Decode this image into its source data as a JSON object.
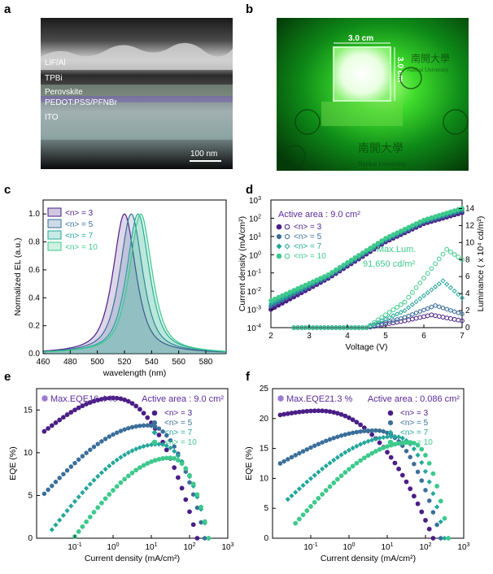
{
  "panel_labels": {
    "a": "a",
    "b": "b",
    "c": "c",
    "d": "d",
    "e": "e",
    "f": "f"
  },
  "colors": {
    "n3": "#4a1e86",
    "n5": "#3b6f9a",
    "n7": "#24a79a",
    "n10": "#3ec98c",
    "ann_purple": "#5b2a9a",
    "ann_green": "#3ec98c"
  },
  "panel_a": {
    "type": "SEM cross-section image",
    "layers": [
      "LiF/Al",
      "TPBi",
      "Perovskite",
      "PEDOT:PSS/PFNBr",
      "ITO"
    ],
    "scalebar": "100 nm"
  },
  "panel_b": {
    "type": "photograph of glowing green device",
    "width_label": "3.0 cm",
    "height_label": "3.0 cm",
    "logo_text": "南開大學",
    "university_text": "Nankai University"
  },
  "chart_data": [
    {
      "id": "c",
      "type": "area",
      "xlabel": "wavelength (nm)",
      "ylabel": "Normalized EL (a.u.)",
      "xlim": [
        460,
        595
      ],
      "ylim": [
        0,
        1.1
      ],
      "xticks": [
        460,
        480,
        500,
        520,
        540,
        560,
        580
      ],
      "yticks": [
        0.0,
        0.2,
        0.4,
        0.6,
        0.8,
        1.0
      ],
      "legend_loc": "top-left",
      "series": [
        {
          "name": "<n> = 3",
          "peak": 520,
          "fwhm": 20,
          "color": "#4a1e86"
        },
        {
          "name": "<n> = 5",
          "peak": 525,
          "fwhm": 20,
          "color": "#3b6f9a"
        },
        {
          "name": "<n> = 7",
          "peak": 530,
          "fwhm": 20,
          "color": "#24a79a"
        },
        {
          "name": "<n> = 10",
          "peak": 532,
          "fwhm": 20,
          "color": "#3ec98c"
        }
      ]
    },
    {
      "id": "d",
      "type": "scatter",
      "xlabel": "Voltage (V)",
      "ylabel": "Current density (mA/cm²)",
      "ylabel2": "Luminance ( x 10⁴ cd/m²)",
      "xlim": [
        2,
        7
      ],
      "ylim_log": [
        -4,
        3
      ],
      "y2lim": [
        0,
        15
      ],
      "xticks": [
        2,
        3,
        4,
        5,
        6,
        7
      ],
      "yticks_exp": [
        -4,
        -3,
        -2,
        -1,
        0,
        1,
        2,
        3
      ],
      "yticks_exp_labels": [
        "10",
        "10",
        "10",
        "10",
        "10",
        "10",
        "10",
        "10"
      ],
      "yticks_exp_sup": [
        "-4",
        "-3",
        "-2",
        "-1",
        "0",
        "1",
        "2",
        "3"
      ],
      "y2ticks": [
        0,
        2,
        4,
        6,
        8,
        10,
        12,
        14
      ],
      "annotation_area": "Active area : 9.0 cm²",
      "annotation_lum": [
        "Max.Lum.",
        "91,650 cd/m²"
      ],
      "legend_loc": "upper-left",
      "series": [
        {
          "name": "<n> = 3",
          "color": "#4a1e86",
          "jv": [
            [
              2,
              0.001
            ],
            [
              3.5,
              0.05
            ],
            [
              5,
              5
            ],
            [
              6,
              50
            ],
            [
              7,
              200
            ]
          ],
          "lum": [
            [
              4.5,
              0
            ],
            [
              5.5,
              0.8
            ],
            [
              6.2,
              1.5
            ],
            [
              7,
              0.8
            ]
          ]
        },
        {
          "name": "<n> = 5",
          "color": "#3b6f9a",
          "jv": [
            [
              2,
              0.0015
            ],
            [
              3.5,
              0.06
            ],
            [
              5,
              6
            ],
            [
              6,
              60
            ],
            [
              7,
              250
            ]
          ],
          "lum": [
            [
              4.5,
              0
            ],
            [
              5.5,
              1.2
            ],
            [
              6.3,
              2.6
            ],
            [
              7,
              1.6
            ]
          ]
        },
        {
          "name": "<n> = 7",
          "color": "#24a79a",
          "jv": [
            [
              2,
              0.002
            ],
            [
              3.5,
              0.07
            ],
            [
              5,
              7
            ],
            [
              6,
              70
            ],
            [
              7,
              300
            ]
          ],
          "lum": [
            [
              4.5,
              0
            ],
            [
              5.5,
              2
            ],
            [
              6.5,
              5.5
            ],
            [
              7,
              3.5
            ]
          ]
        },
        {
          "name": "<n> = 10",
          "color": "#3ec98c",
          "jv": [
            [
              2,
              0.003
            ],
            [
              3.5,
              0.08
            ],
            [
              5,
              8
            ],
            [
              6,
              80
            ],
            [
              7,
              350
            ]
          ],
          "lum": [
            [
              4.5,
              0
            ],
            [
              5.5,
              3
            ],
            [
              6.6,
              9.2
            ],
            [
              7,
              8
            ]
          ]
        }
      ]
    },
    {
      "id": "e",
      "type": "scatter",
      "xlabel": "Current density (mA/cm²)",
      "ylabel": "EQE (%)",
      "xlim_log": [
        -2,
        3
      ],
      "ylim": [
        0,
        17.5
      ],
      "xticks_exp": [
        -1,
        0,
        1,
        2,
        3
      ],
      "yticks": [
        0,
        5,
        10,
        15
      ],
      "annotation_max": "Max.EQE16.4 %",
      "annotation_area": "Active area : 9.0 cm²",
      "legend_loc": "upper-right",
      "series": [
        {
          "name": "<n> = 3",
          "color": "#4a1e86",
          "x_range": [
            -1.8,
            2.2
          ],
          "peak_x": 0.0,
          "peak_y": 16.4,
          "start_y": 12.5
        },
        {
          "name": "<n> = 5",
          "color": "#3b6f9a",
          "x_range": [
            -1.8,
            2.4
          ],
          "peak_x": 0.9,
          "peak_y": 13.2,
          "start_y": 5.2
        },
        {
          "name": "<n> = 7",
          "color": "#24a79a",
          "x_range": [
            -1.6,
            2.5
          ],
          "peak_x": 1.2,
          "peak_y": 11.0,
          "start_y": 1.0
        },
        {
          "name": "<n> = 10",
          "color": "#3ec98c",
          "x_range": [
            -1.0,
            2.5
          ],
          "peak_x": 1.5,
          "peak_y": 9.4,
          "start_y": 0.2
        }
      ]
    },
    {
      "id": "f",
      "type": "scatter",
      "xlabel": "Current density (mA/cm²)",
      "ylabel": "EQE (%)",
      "xlim_log": [
        -2,
        3
      ],
      "ylim": [
        0,
        25
      ],
      "xticks_exp": [
        -1,
        0,
        1,
        2,
        3
      ],
      "yticks": [
        0,
        5,
        10,
        15,
        20,
        25
      ],
      "annotation_max": "Max.EQE21.3 %",
      "annotation_area": "Active area : 0.086 cm²",
      "legend_loc": "upper-right",
      "series": [
        {
          "name": "<n> = 3",
          "color": "#4a1e86",
          "x_range": [
            -1.8,
            2.2
          ],
          "peak_x": -0.8,
          "peak_y": 21.3,
          "start_y": 20.6
        },
        {
          "name": "<n> = 5",
          "color": "#3b6f9a",
          "x_range": [
            -1.8,
            2.4
          ],
          "peak_x": 0.7,
          "peak_y": 18.0,
          "start_y": 12.5
        },
        {
          "name": "<n> = 7",
          "color": "#24a79a",
          "x_range": [
            -1.6,
            2.5
          ],
          "peak_x": 1.2,
          "peak_y": 17.0,
          "start_y": 6.5
        },
        {
          "name": "<n> = 10",
          "color": "#3ec98c",
          "x_range": [
            -1.4,
            2.6
          ],
          "peak_x": 1.6,
          "peak_y": 16.0,
          "start_y": 2.5
        }
      ]
    }
  ]
}
